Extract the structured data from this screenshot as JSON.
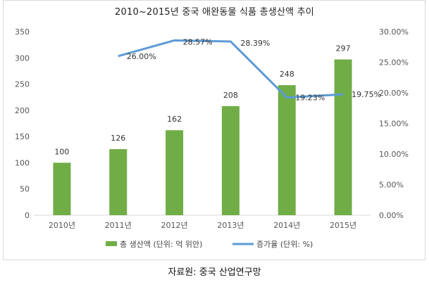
{
  "title": "2010~2015년 중국 애완동물 식품 총생산액 추이",
  "source": "자료원: 중국 산업연구망",
  "colors": {
    "bar": "#70ad47",
    "line": "#5b9bd5",
    "axis": "#d9d9d9"
  },
  "chart_data": {
    "type": "bar",
    "categories": [
      "2010년",
      "2011년",
      "2012년",
      "2013년",
      "2014년",
      "2015년"
    ],
    "series": [
      {
        "name": "총 생산액 (단위: 억 위안)",
        "type": "bar",
        "axis": "left",
        "values": [
          100,
          126,
          162,
          208,
          248,
          297
        ],
        "labels": [
          "100",
          "126",
          "162",
          "208",
          "248",
          "297"
        ]
      },
      {
        "name": "증가율 (단위: %)",
        "type": "line",
        "axis": "right",
        "values": [
          null,
          26.0,
          28.57,
          28.39,
          19.23,
          19.75
        ],
        "labels": [
          "",
          "26.00%",
          "28.57%",
          "28.39%",
          "19.23%",
          "19.75%"
        ]
      }
    ],
    "y_left": {
      "min": 0,
      "max": 350,
      "step": 50,
      "tick_labels": [
        "0",
        "50",
        "100",
        "150",
        "200",
        "250",
        "300",
        "350"
      ]
    },
    "y_right": {
      "min": 0,
      "max": 30,
      "step": 5,
      "tick_labels": [
        "0.00%",
        "5.00%",
        "10.00%",
        "15.00%",
        "20.00%",
        "25.00%",
        "30.00%"
      ]
    },
    "grid": false,
    "legend": "bottom"
  }
}
